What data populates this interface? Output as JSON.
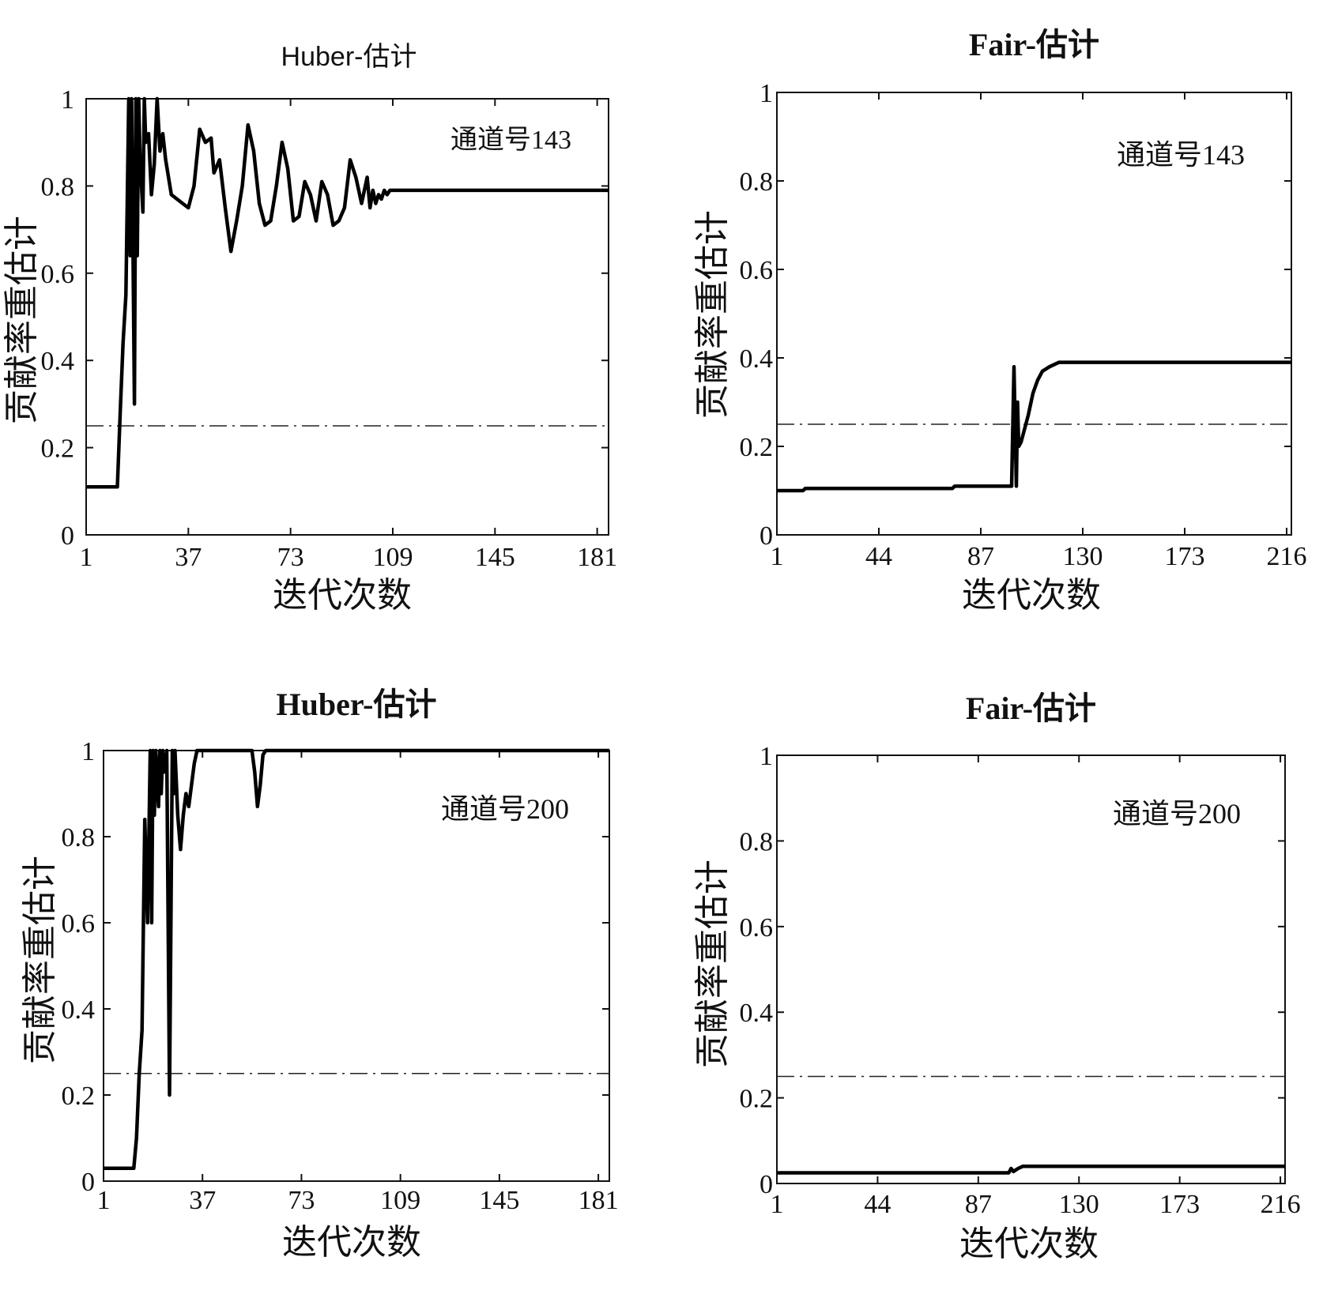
{
  "figure": {
    "panels": [
      {
        "title": "Huber-估计",
        "annotation": "通道号143",
        "xlabel": "迭代次数",
        "ylabel": "贡献率重估计"
      },
      {
        "title": "Fair-估计",
        "annotation": "通道号143",
        "xlabel": "迭代次数",
        "ylabel": "贡献率重估计"
      },
      {
        "title": "Huber-估计",
        "annotation": "通道号200",
        "xlabel": "迭代次数",
        "ylabel": "贡献率重估计"
      },
      {
        "title": "Fair-估计",
        "annotation": "通道号200",
        "xlabel": "迭代次数",
        "ylabel": "贡献率重估计"
      }
    ]
  },
  "chart_data": [
    {
      "type": "line",
      "title": "Huber-估计",
      "annotation": "通道号143",
      "xlabel": "迭代次数",
      "ylabel": "贡献率重估计",
      "xlim": [
        1,
        185
      ],
      "ylim": [
        0,
        1
      ],
      "xticks": [
        1,
        37,
        73,
        109,
        145,
        181
      ],
      "yticks": [
        0,
        0.2,
        0.4,
        0.6,
        0.8,
        1
      ],
      "ytick_labels": [
        "0",
        "0.2",
        "0.4",
        "0.6",
        "0.8",
        "1"
      ],
      "threshold": 0.25,
      "series": [
        {
          "x": [
            1,
            12,
            13,
            14,
            15,
            16,
            16.5,
            17,
            18,
            18.5,
            19,
            19.5,
            20,
            21,
            21.5,
            22,
            23,
            24,
            25,
            26,
            27,
            28,
            29,
            31,
            33,
            35,
            37,
            39,
            41,
            43,
            45,
            46,
            48,
            50,
            52,
            54,
            56,
            58,
            60,
            62,
            64,
            66,
            68,
            70,
            72,
            74,
            76,
            78,
            80,
            82,
            84,
            86,
            88,
            90,
            92,
            94,
            96,
            98,
            100,
            101,
            102,
            103,
            104,
            105,
            106,
            107,
            108,
            110,
            185
          ],
          "y": [
            0.11,
            0.11,
            0.28,
            0.44,
            0.55,
            1.0,
            0.64,
            1.0,
            0.3,
            1.0,
            0.64,
            1.0,
            0.86,
            0.74,
            1.0,
            0.9,
            0.92,
            0.78,
            0.85,
            1.0,
            0.88,
            0.92,
            0.86,
            0.78,
            0.77,
            0.76,
            0.75,
            0.8,
            0.93,
            0.9,
            0.91,
            0.83,
            0.86,
            0.75,
            0.65,
            0.72,
            0.8,
            0.94,
            0.88,
            0.76,
            0.71,
            0.72,
            0.8,
            0.9,
            0.84,
            0.72,
            0.73,
            0.81,
            0.78,
            0.72,
            0.81,
            0.78,
            0.71,
            0.72,
            0.75,
            0.86,
            0.82,
            0.76,
            0.82,
            0.75,
            0.79,
            0.76,
            0.78,
            0.77,
            0.79,
            0.78,
            0.79,
            0.79,
            0.79
          ]
        }
      ]
    },
    {
      "type": "line",
      "title": "Fair-估计",
      "annotation": "通道号143",
      "xlabel": "迭代次数",
      "ylabel": "贡献率重估计",
      "xlim": [
        1,
        218
      ],
      "ylim": [
        0,
        1
      ],
      "xticks": [
        1,
        44,
        87,
        130,
        173,
        216
      ],
      "yticks": [
        0,
        0.2,
        0.4,
        0.6,
        0.8,
        1
      ],
      "ytick_labels": [
        "0",
        "0.2",
        "0.4",
        "0.6",
        "0.8",
        "1"
      ],
      "threshold": 0.25,
      "series": [
        {
          "x": [
            1,
            12,
            13,
            50,
            75,
            76,
            100,
            101,
            102,
            102.5,
            103,
            104,
            105,
            107,
            109,
            111,
            113,
            116,
            120,
            124,
            130,
            218
          ],
          "y": [
            0.1,
            0.1,
            0.105,
            0.105,
            0.105,
            0.11,
            0.11,
            0.38,
            0.11,
            0.3,
            0.2,
            0.21,
            0.23,
            0.27,
            0.32,
            0.35,
            0.37,
            0.38,
            0.39,
            0.39,
            0.39,
            0.39
          ]
        }
      ]
    },
    {
      "type": "line",
      "title": "Huber-估计",
      "annotation": "通道号200",
      "xlabel": "迭代次数",
      "ylabel": "贡献率重估计",
      "xlim": [
        1,
        185
      ],
      "ylim": [
        0,
        1
      ],
      "xticks": [
        1,
        37,
        73,
        109,
        145,
        181
      ],
      "yticks": [
        0,
        0.2,
        0.4,
        0.6,
        0.8,
        1
      ],
      "ytick_labels": [
        "0",
        "0.2",
        "0.4",
        "0.6",
        "0.8",
        "1"
      ],
      "threshold": 0.25,
      "series": [
        {
          "x": [
            1,
            12,
            13,
            14,
            15,
            16,
            17,
            18,
            18.5,
            19,
            19.5,
            20,
            21,
            21.5,
            22,
            22.5,
            23,
            24,
            25,
            26,
            26.5,
            27,
            28,
            29,
            30,
            31,
            32,
            33,
            34,
            35,
            37,
            40,
            55,
            56,
            57,
            58,
            59,
            60,
            185
          ],
          "y": [
            0.03,
            0.03,
            0.1,
            0.25,
            0.35,
            0.84,
            0.6,
            1.0,
            0.6,
            1.0,
            0.85,
            1.0,
            0.87,
            1.0,
            0.9,
            1.0,
            0.95,
            1.0,
            0.2,
            1.0,
            0.9,
            1.0,
            0.85,
            0.77,
            0.85,
            0.9,
            0.87,
            0.92,
            0.97,
            1.0,
            1.0,
            1.0,
            1.0,
            0.95,
            0.87,
            0.92,
            0.99,
            1.0,
            1.0
          ]
        }
      ]
    },
    {
      "type": "line",
      "title": "Fair-估计",
      "annotation": "通道号200",
      "xlabel": "迭代次数",
      "ylabel": "贡献率重估计",
      "xlim": [
        1,
        218
      ],
      "ylim": [
        0,
        1
      ],
      "xticks": [
        1,
        44,
        87,
        130,
        173,
        216
      ],
      "yticks": [
        0,
        0.2,
        0.4,
        0.6,
        0.8,
        1
      ],
      "ytick_labels": [
        "0",
        "0.2",
        "0.4",
        "0.6",
        "0.8",
        "1"
      ],
      "threshold": 0.25,
      "series": [
        {
          "x": [
            1,
            100,
            101,
            102,
            104,
            106,
            110,
            218
          ],
          "y": [
            0.025,
            0.025,
            0.035,
            0.028,
            0.035,
            0.04,
            0.04,
            0.04
          ]
        }
      ]
    }
  ]
}
